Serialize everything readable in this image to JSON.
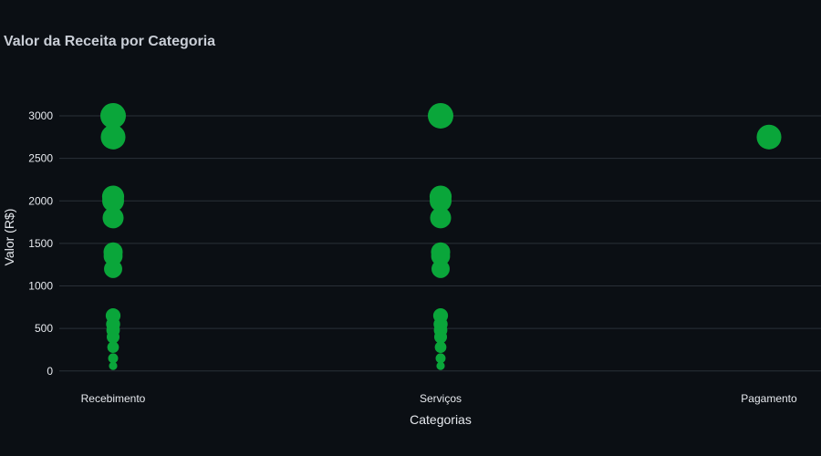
{
  "chart_data": {
    "type": "scatter",
    "title": "Valor da Receita por Categoria",
    "xlabel": "Categorias",
    "ylabel": "Valor (R$)",
    "categories": [
      "Recebimento",
      "Serviços",
      "Pagamento"
    ],
    "yticks": [
      0,
      500,
      1000,
      1500,
      2000,
      2500,
      3000
    ],
    "ylim": [
      -120,
      3450
    ],
    "grid": true,
    "marker_color": "#0aa63a",
    "series": [
      {
        "points": [
          {
            "x": "Recebimento",
            "y": 3000
          },
          {
            "x": "Recebimento",
            "y": 2750
          },
          {
            "x": "Recebimento",
            "y": 2050
          },
          {
            "x": "Recebimento",
            "y": 2000
          },
          {
            "x": "Recebimento",
            "y": 1800
          },
          {
            "x": "Recebimento",
            "y": 1400
          },
          {
            "x": "Recebimento",
            "y": 1350
          },
          {
            "x": "Recebimento",
            "y": 1200
          },
          {
            "x": "Recebimento",
            "y": 650
          },
          {
            "x": "Recebimento",
            "y": 550
          },
          {
            "x": "Recebimento",
            "y": 480
          },
          {
            "x": "Recebimento",
            "y": 400
          },
          {
            "x": "Recebimento",
            "y": 280
          },
          {
            "x": "Recebimento",
            "y": 150
          },
          {
            "x": "Recebimento",
            "y": 60
          },
          {
            "x": "Serviços",
            "y": 3000
          },
          {
            "x": "Serviços",
            "y": 2050
          },
          {
            "x": "Serviços",
            "y": 2000
          },
          {
            "x": "Serviços",
            "y": 1800
          },
          {
            "x": "Serviços",
            "y": 1400
          },
          {
            "x": "Serviços",
            "y": 1350
          },
          {
            "x": "Serviços",
            "y": 1200
          },
          {
            "x": "Serviços",
            "y": 650
          },
          {
            "x": "Serviços",
            "y": 550
          },
          {
            "x": "Serviços",
            "y": 480
          },
          {
            "x": "Serviços",
            "y": 400
          },
          {
            "x": "Serviços",
            "y": 280
          },
          {
            "x": "Serviços",
            "y": 150
          },
          {
            "x": "Serviços",
            "y": 60
          },
          {
            "x": "Pagamento",
            "y": 2750
          }
        ]
      }
    ]
  }
}
